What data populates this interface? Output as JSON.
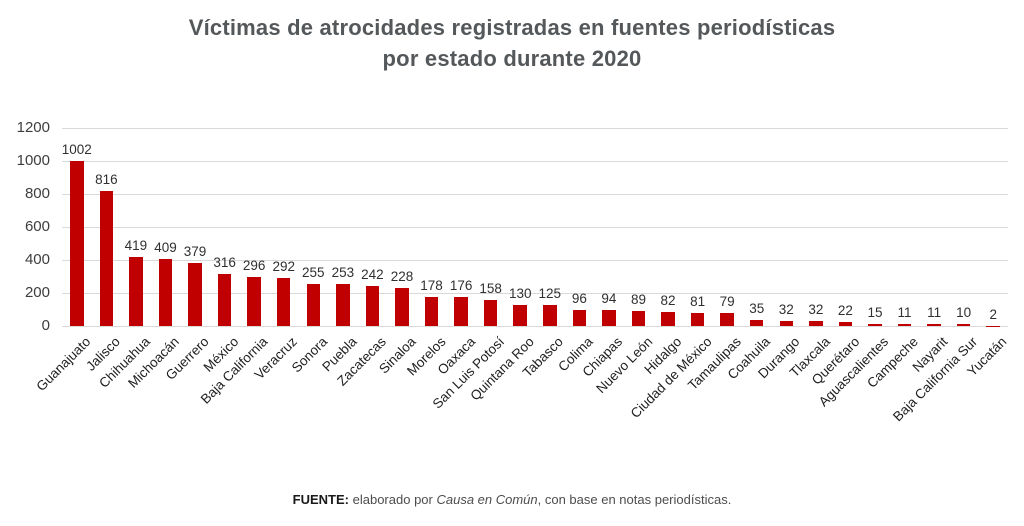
{
  "title": {
    "line1": "Víctimas de atrocidades registradas en fuentes periodísticas",
    "line2": "por estado durante 2020"
  },
  "chart_data": {
    "type": "bar",
    "title": "Víctimas de atrocidades registradas en fuentes periodísticas por estado durante 2020",
    "categories": [
      "Guanajuato",
      "Jalisco",
      "Chihuahua",
      "Michoacán",
      "Guerrero",
      "México",
      "Baja California",
      "Veracruz",
      "Sonora",
      "Puebla",
      "Zacatecas",
      "Sinaloa",
      "Morelos",
      "Oaxaca",
      "San Luis Potosí",
      "Quintana Roo",
      "Tabasco",
      "Colima",
      "Chiapas",
      "Nuevo León",
      "Hidalgo",
      "Ciudad de México",
      "Tamaulipas",
      "Coahuila",
      "Durango",
      "Tlaxcala",
      "Querétaro",
      "Aguascalientes",
      "Campeche",
      "Nayarit",
      "Baja California Sur",
      "Yucatán"
    ],
    "values": [
      1002,
      816,
      419,
      409,
      379,
      316,
      296,
      292,
      255,
      253,
      242,
      228,
      178,
      176,
      158,
      130,
      125,
      96,
      94,
      89,
      82,
      81,
      79,
      35,
      32,
      32,
      22,
      15,
      11,
      11,
      10,
      2
    ],
    "xlabel": "",
    "ylabel": "",
    "ylim": [
      0,
      1200
    ],
    "yticks": [
      0,
      200,
      400,
      600,
      800,
      1000,
      1200
    ],
    "grid": true,
    "legend": "none",
    "bar_color": "#c00000",
    "grid_color": "#d9d9d9"
  },
  "footer": {
    "prefix": "FUENTE:",
    "middle": " elaborado por ",
    "source": "Causa en Común",
    "suffix": ", con base en notas periodísticas."
  }
}
